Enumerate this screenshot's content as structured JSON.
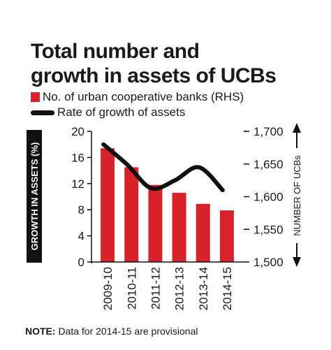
{
  "title_line1": "Total number and",
  "title_line2": "growth in assets of UCBs",
  "legend": {
    "bar_label": "No. of urban cooperative banks (RHS)",
    "line_label": "Rate of growth of assets"
  },
  "note": {
    "label": "NOTE:",
    "text": "Data for 2014-15 are provisional"
  },
  "colors": {
    "bar": "#d7222b",
    "line": "#111111",
    "axis_box": "#111111"
  },
  "chart_data": {
    "type": "bar",
    "categories": [
      "2009-10",
      "2010-11",
      "2011-12",
      "2012-13",
      "2013-14",
      "2014-15"
    ],
    "series": [
      {
        "name": "No. of urban cooperative banks (RHS)",
        "type": "bar",
        "axis": "right",
        "values": [
          1674,
          1645,
          1618,
          1606,
          1589,
          1579
        ]
      },
      {
        "name": "Rate of growth of assets",
        "type": "line",
        "axis": "left",
        "values": [
          18.0,
          14.9,
          11.3,
          12.5,
          14.5,
          11.0
        ]
      }
    ],
    "ylabel": "GROWTH IN ASSETS (%)",
    "ylabel_right": "NUMBER OF UCBs",
    "ylim": [
      0,
      20
    ],
    "yticks": [
      0,
      4,
      8,
      12,
      16,
      20
    ],
    "ylim_right": [
      1500,
      1700
    ],
    "yticks_right": [
      1500,
      1550,
      1600,
      1650,
      1700
    ],
    "yticks_right_labels": [
      "1,500",
      "1,550",
      "1,600",
      "1,650",
      "1,700"
    ],
    "grid": false,
    "legend_position": "top-left"
  }
}
